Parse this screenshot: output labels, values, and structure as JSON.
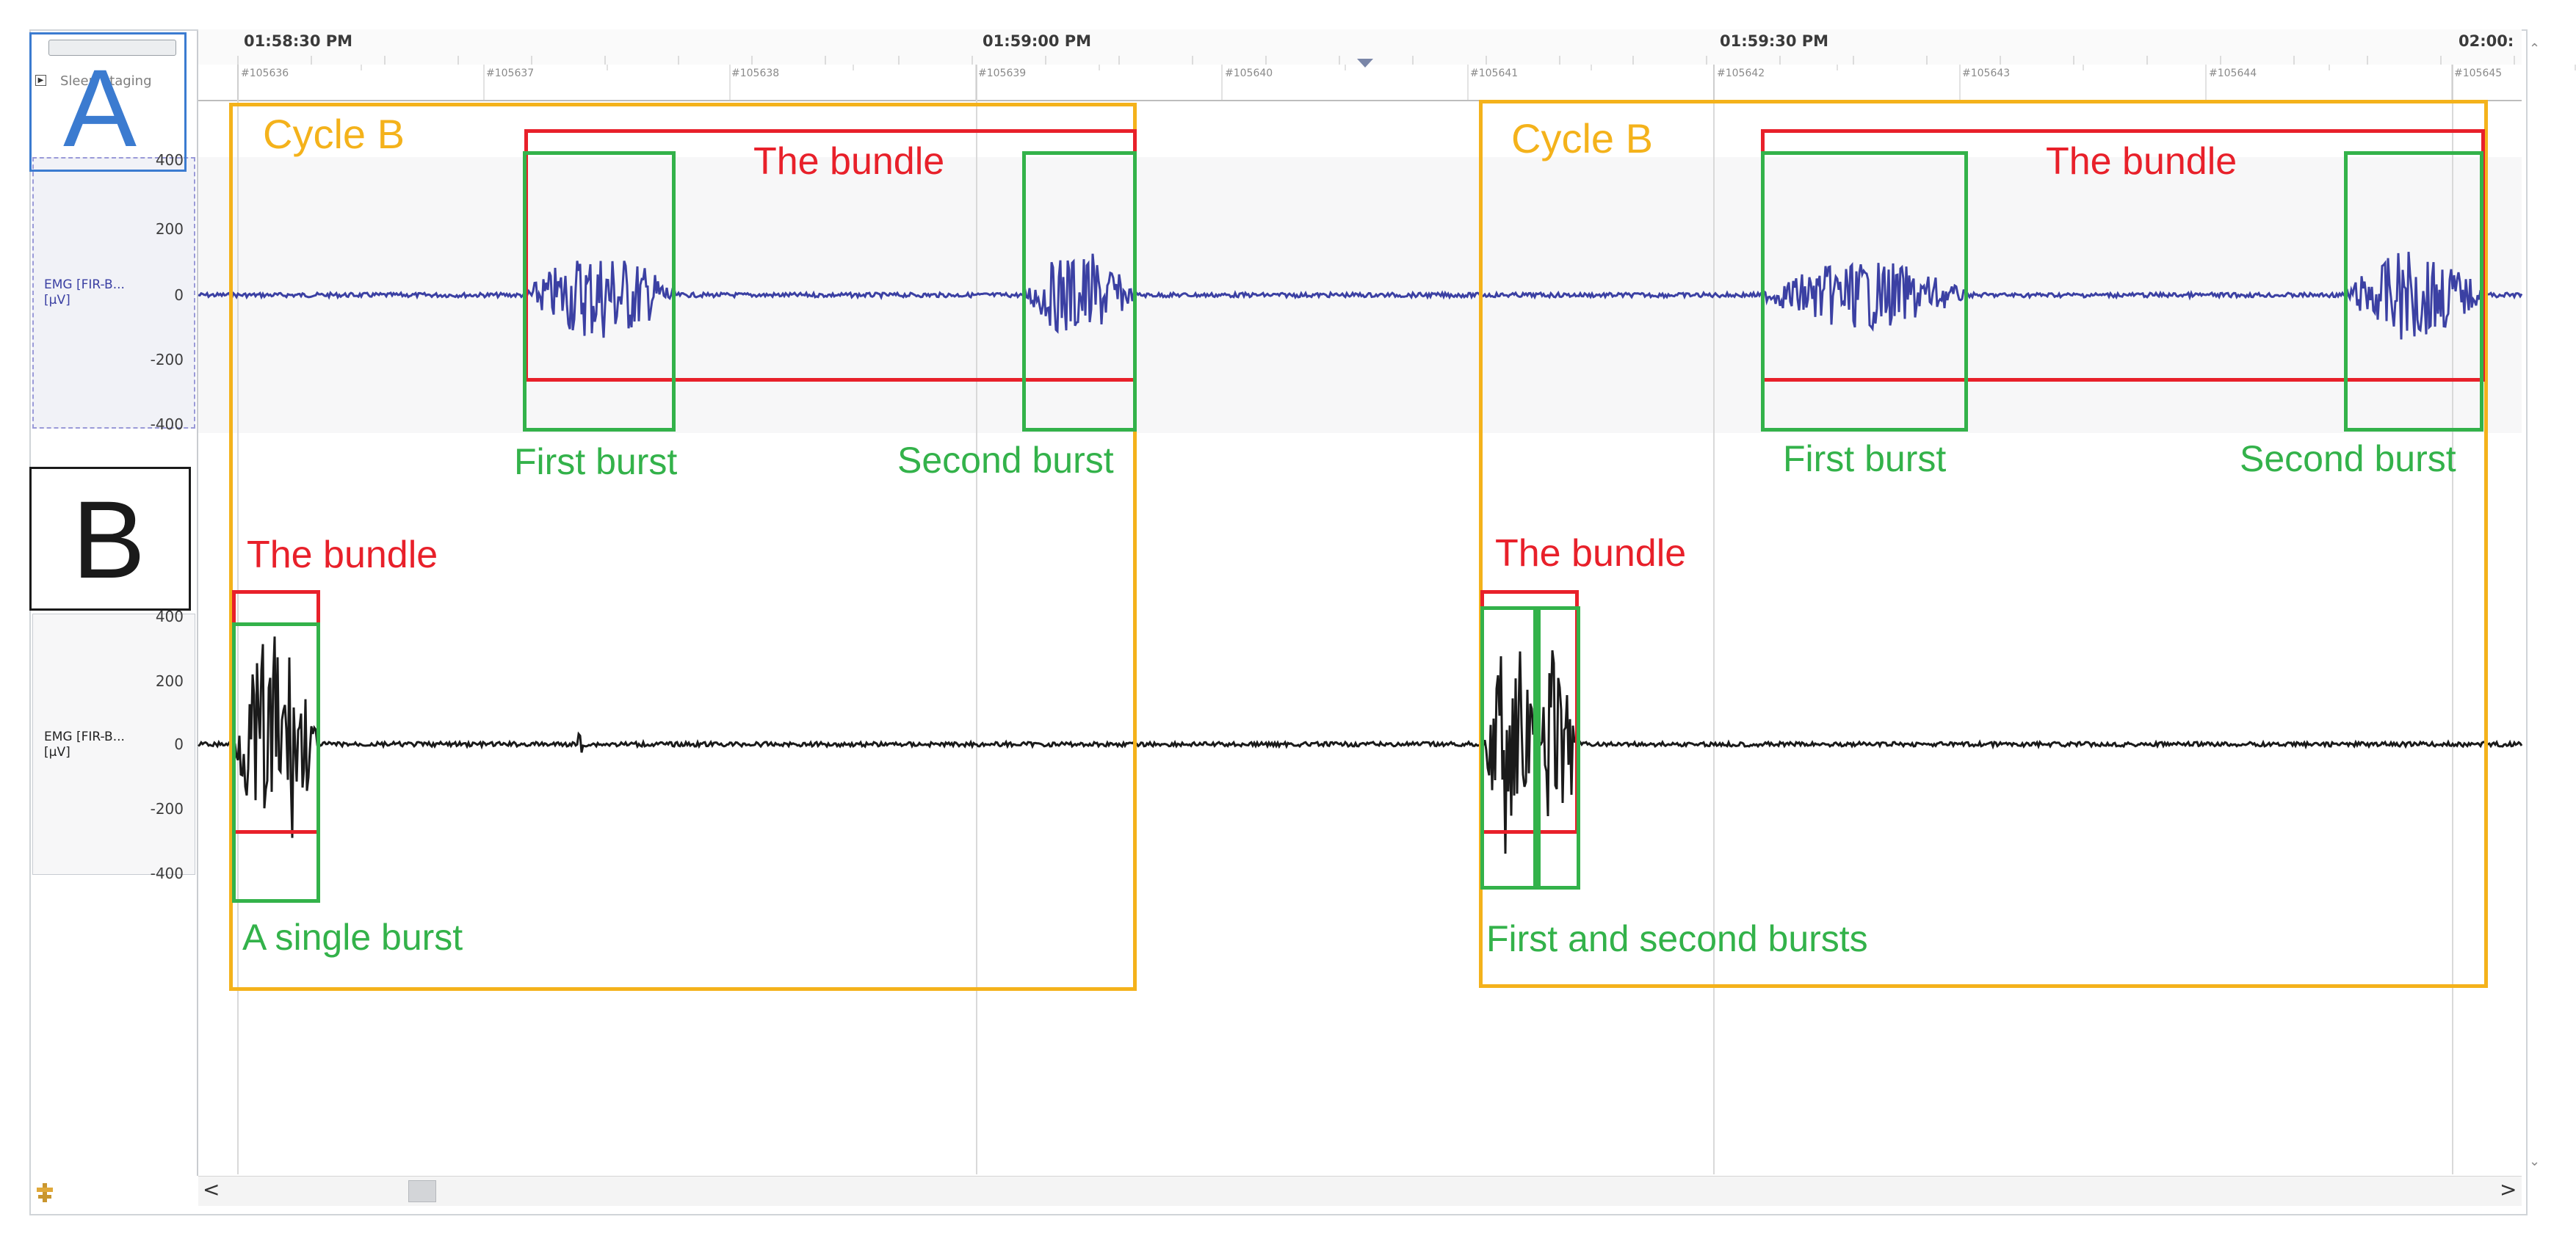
{
  "time_axis": {
    "labels": [
      "01:58:30 PM",
      "01:59:00 PM",
      "01:59:30 PM",
      "02:00:"
    ]
  },
  "epochs": [
    "#105636",
    "#105637",
    "#105638",
    "#105639",
    "#105640",
    "#105641",
    "#105642",
    "#105643",
    "#105644",
    "#105645"
  ],
  "sidebar": {
    "group_label": "Sleep Staging"
  },
  "channels": [
    {
      "id": "A",
      "label_line1": "EMG [FIR-B...",
      "label_line2": "[µV]",
      "y_ticks": [
        "400",
        "200",
        "0",
        "-200",
        "-400"
      ],
      "trace_color": "#3b40a3"
    },
    {
      "id": "B",
      "label_line1": "EMG [FIR-B...",
      "label_line2": "[µV]",
      "y_ticks": [
        "400",
        "200",
        "0",
        "-200",
        "-400"
      ],
      "trace_color": "#1a1a1a"
    }
  ],
  "panels": {
    "a_letter": "A",
    "b_letter": "B"
  },
  "annotations": {
    "cycle_label": "Cycle B",
    "bundle_label": "The bundle",
    "first_burst": "First burst",
    "second_burst": "Second burst",
    "single_burst": "A single burst",
    "first_and_second": "First and second bursts"
  },
  "colors": {
    "cycle": "#f4b21b",
    "bundle": "#e8202a",
    "burst": "#33b24a",
    "panel_a_box": "#3b7bd0",
    "panel_b_box": "#1a1a1a"
  },
  "scrollbar": {
    "left_arrow": "<",
    "right_arrow": ">"
  }
}
